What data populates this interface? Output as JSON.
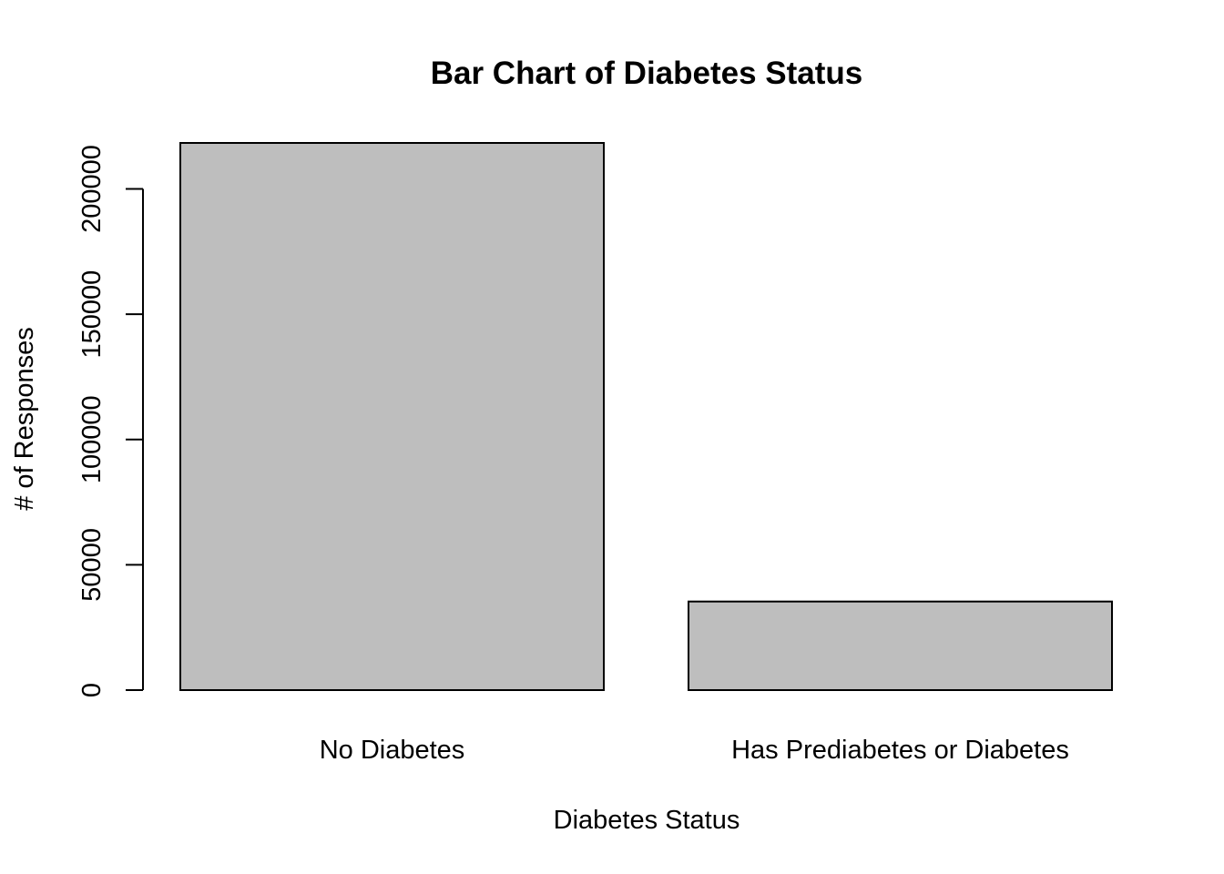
{
  "chart_data": {
    "type": "bar",
    "title": "Bar Chart of Diabetes Status",
    "xlabel": "Diabetes Status",
    "ylabel": "# of Responses",
    "categories": [
      "No Diabetes",
      "Has Prediabetes or Diabetes"
    ],
    "values": [
      218334,
      35346
    ],
    "yticks": [
      0,
      50000,
      100000,
      150000,
      200000
    ],
    "ylim": [
      0,
      218334
    ],
    "bar_color": "#bebebe",
    "grid": false,
    "legend": "none"
  }
}
